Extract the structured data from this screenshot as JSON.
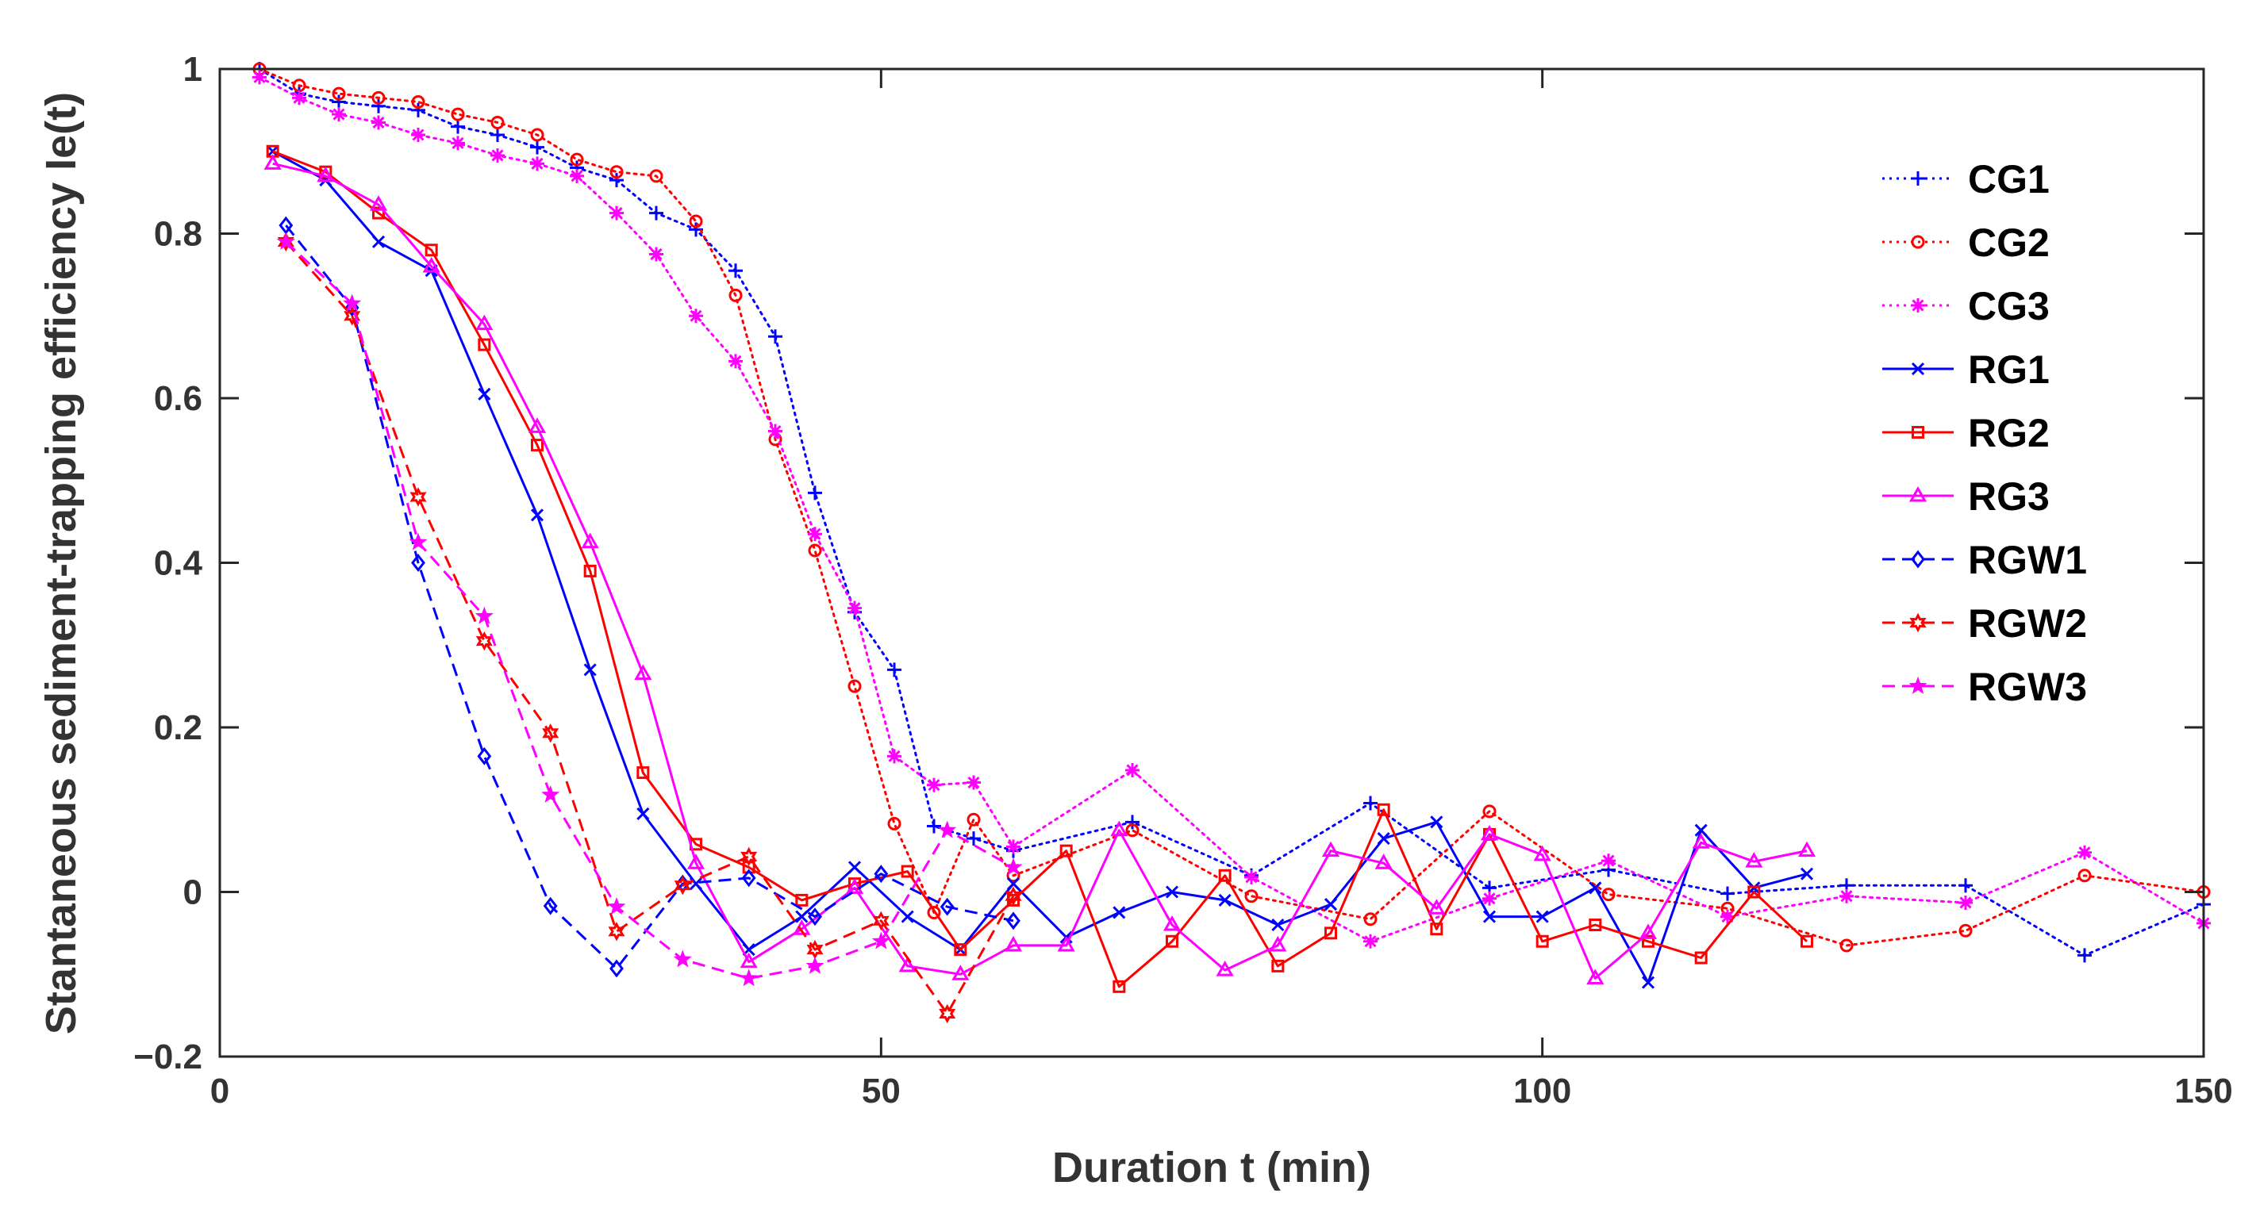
{
  "chart_data": {
    "type": "line",
    "xlabel": "Duration t (min)",
    "ylabel": "Stantaneous sediment-trapping efficiency Ie(t)",
    "xlim": [
      0,
      150
    ],
    "ylim": [
      -0.2,
      1
    ],
    "xticks": [
      0,
      50,
      100,
      150
    ],
    "xtick_labels": [
      "0",
      "50",
      "100",
      "150"
    ],
    "yticks": [
      -0.2,
      0,
      0.2,
      0.4,
      0.6,
      0.8,
      1
    ],
    "ytick_labels": [
      "−0.2",
      "0",
      "0.2",
      "0.4",
      "0.6",
      "0.8",
      "1"
    ],
    "grid": false,
    "legend_position": "top-right",
    "series": [
      {
        "name": "CG1",
        "color": "#0000ff",
        "dash": "dotted",
        "marker": "plus",
        "x": [
          3,
          6,
          9,
          12,
          15,
          18,
          21,
          24,
          27,
          30,
          33,
          36,
          39,
          42,
          45,
          48,
          51,
          54,
          57,
          60,
          69,
          78,
          87,
          96,
          105,
          114,
          123,
          132,
          141,
          150
        ],
        "y": [
          1.0,
          0.97,
          0.96,
          0.955,
          0.95,
          0.93,
          0.92,
          0.905,
          0.88,
          0.865,
          0.825,
          0.805,
          0.755,
          0.675,
          0.485,
          0.34,
          0.27,
          0.08,
          0.065,
          0.05,
          0.085,
          0.02,
          0.108,
          0.005,
          0.027,
          -0.002,
          0.008,
          0.008,
          -0.077,
          -0.015
        ]
      },
      {
        "name": "CG2",
        "color": "#ff0000",
        "dash": "dotted",
        "marker": "circle",
        "x": [
          3,
          6,
          9,
          12,
          15,
          18,
          21,
          24,
          27,
          30,
          33,
          36,
          39,
          42,
          45,
          48,
          51,
          54,
          57,
          60,
          69,
          78,
          87,
          96,
          105,
          114,
          123,
          132,
          141,
          150
        ],
        "y": [
          1.0,
          0.98,
          0.97,
          0.965,
          0.96,
          0.945,
          0.935,
          0.92,
          0.89,
          0.875,
          0.87,
          0.815,
          0.725,
          0.55,
          0.415,
          0.25,
          0.083,
          -0.025,
          0.088,
          0.02,
          0.075,
          -0.005,
          -0.033,
          0.098,
          -0.003,
          -0.02,
          -0.065,
          -0.047,
          0.02,
          0.0
        ]
      },
      {
        "name": "CG3",
        "color": "#ff00ff",
        "dash": "dotted",
        "marker": "asterisk",
        "x": [
          3,
          6,
          9,
          12,
          15,
          18,
          21,
          24,
          27,
          30,
          33,
          36,
          39,
          42,
          45,
          48,
          51,
          54,
          57,
          60,
          69,
          78,
          87,
          96,
          105,
          114,
          123,
          132,
          141,
          150
        ],
        "y": [
          0.99,
          0.965,
          0.945,
          0.935,
          0.92,
          0.91,
          0.895,
          0.885,
          0.87,
          0.825,
          0.775,
          0.7,
          0.645,
          0.56,
          0.435,
          0.345,
          0.165,
          0.13,
          0.133,
          0.055,
          0.148,
          0.018,
          -0.06,
          -0.008,
          0.038,
          -0.03,
          -0.005,
          -0.013,
          0.048,
          -0.038
        ]
      },
      {
        "name": "RG1",
        "color": "#0000ff",
        "dash": "solid",
        "marker": "x",
        "x": [
          4,
          8,
          12,
          16,
          20,
          24,
          28,
          32,
          36,
          40,
          44,
          48,
          52,
          56,
          60,
          64,
          68,
          72,
          76,
          80,
          84,
          88,
          92,
          96,
          100,
          104,
          108,
          112,
          116,
          120
        ],
        "y": [
          0.9,
          0.865,
          0.79,
          0.755,
          0.605,
          0.458,
          0.27,
          0.095,
          0.01,
          -0.07,
          -0.03,
          0.03,
          -0.03,
          -0.07,
          0.01,
          -0.055,
          -0.025,
          0.0,
          -0.01,
          -0.04,
          -0.015,
          0.065,
          0.085,
          -0.03,
          -0.03,
          0.005,
          -0.11,
          0.075,
          0.005,
          0.022
        ]
      },
      {
        "name": "RG2",
        "color": "#ff0000",
        "dash": "solid",
        "marker": "square",
        "x": [
          4,
          8,
          12,
          16,
          20,
          24,
          28,
          32,
          36,
          40,
          44,
          48,
          52,
          56,
          60,
          64,
          68,
          72,
          76,
          80,
          84,
          88,
          92,
          96,
          100,
          104,
          108,
          112,
          116,
          120
        ],
        "y": [
          0.9,
          0.875,
          0.825,
          0.78,
          0.665,
          0.543,
          0.39,
          0.145,
          0.058,
          0.03,
          -0.01,
          0.01,
          0.025,
          -0.07,
          -0.01,
          0.05,
          -0.115,
          -0.06,
          0.02,
          -0.09,
          -0.05,
          0.1,
          -0.045,
          0.07,
          -0.06,
          -0.04,
          -0.06,
          -0.08,
          0.0,
          -0.06
        ]
      },
      {
        "name": "RG3",
        "color": "#ff00ff",
        "dash": "solid",
        "marker": "triangle",
        "x": [
          4,
          8,
          12,
          16,
          20,
          24,
          28,
          32,
          36,
          40,
          44,
          48,
          52,
          56,
          60,
          64,
          68,
          72,
          76,
          80,
          84,
          88,
          92,
          96,
          100,
          104,
          108,
          112,
          116,
          120
        ],
        "y": [
          0.885,
          0.87,
          0.835,
          0.76,
          0.69,
          0.565,
          0.425,
          0.265,
          0.035,
          -0.085,
          -0.045,
          0.005,
          -0.09,
          -0.1,
          -0.065,
          -0.065,
          0.075,
          -0.04,
          -0.095,
          -0.065,
          0.05,
          0.035,
          -0.02,
          0.07,
          0.045,
          -0.105,
          -0.05,
          0.06,
          0.037,
          0.05
        ]
      },
      {
        "name": "RGW1",
        "color": "#0000ff",
        "dash": "dashed",
        "marker": "diamond",
        "x": [
          5,
          10,
          15,
          20,
          25,
          30,
          35,
          40,
          45,
          50,
          55,
          60
        ],
        "y": [
          0.81,
          0.71,
          0.4,
          0.165,
          -0.017,
          -0.093,
          0.01,
          0.017,
          -0.03,
          0.022,
          -0.018,
          -0.035
        ]
      },
      {
        "name": "RGW2",
        "color": "#ff0000",
        "dash": "dashed",
        "marker": "hexagram",
        "x": [
          5,
          10,
          15,
          20,
          25,
          30,
          35,
          40,
          45,
          50,
          55,
          60
        ],
        "y": [
          0.79,
          0.7,
          0.48,
          0.305,
          0.193,
          -0.048,
          0.008,
          0.043,
          -0.07,
          -0.035,
          -0.148,
          -0.005
        ]
      },
      {
        "name": "RGW3",
        "color": "#ff00ff",
        "dash": "dashed",
        "marker": "pentagram",
        "x": [
          5,
          10,
          15,
          20,
          25,
          30,
          35,
          40,
          45,
          50,
          55,
          60
        ],
        "y": [
          0.79,
          0.715,
          0.425,
          0.335,
          0.118,
          -0.018,
          -0.082,
          -0.105,
          -0.09,
          -0.06,
          0.075,
          0.03
        ]
      }
    ]
  }
}
